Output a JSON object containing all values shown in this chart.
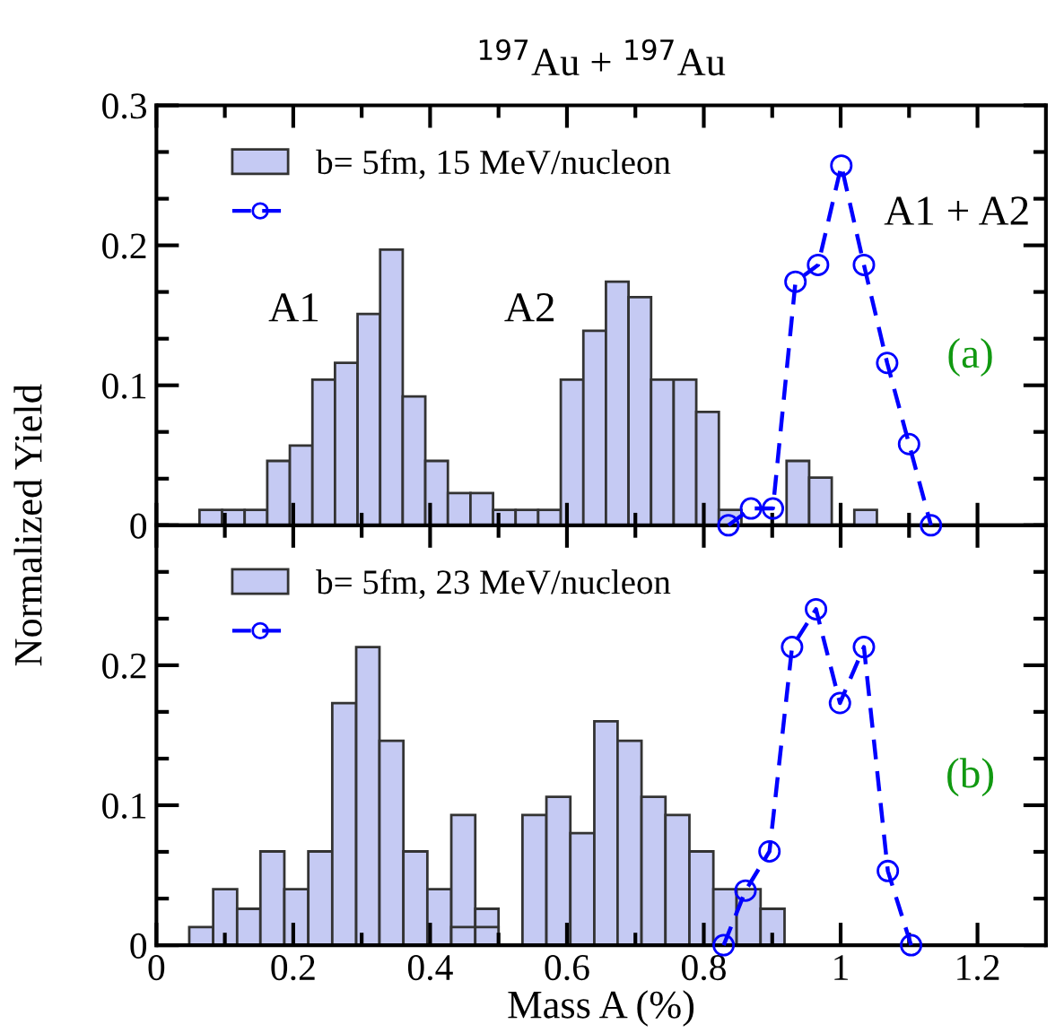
{
  "chart_data": [
    {
      "type": "histogram",
      "title": "$^{197}$Au + $^{197}$Au",
      "ylabel": "Normalized Yield",
      "bins": [
        0.063,
        0.096,
        0.129,
        0.162,
        0.195,
        0.228,
        0.261,
        0.294,
        0.327,
        0.36,
        0.393,
        0.426,
        0.459,
        0.492,
        0.525,
        0.558,
        0.591,
        0.624,
        0.657,
        0.69,
        0.723,
        0.756,
        0.789,
        0.822,
        0.855,
        0.888,
        0.921,
        0.954,
        0.987,
        1.02,
        1.053
      ],
      "series": [
        {
          "name": "b= 5fm, 15 MeV/nucleon",
          "color": "#c5caf3",
          "values": [
            0.011,
            0.011,
            0.011,
            0.046,
            0.057,
            0.104,
            0.116,
            0.151,
            0.197,
            0.092,
            0.046,
            0.023,
            0.023,
            0.011,
            0.011,
            0.011,
            0.104,
            0.139,
            0.174,
            0.163,
            0.104,
            0.104,
            0.081,
            0.011,
            null,
            null,
            0.046,
            0.034,
            null,
            0.011
          ]
        },
        {
          "type": "line",
          "color": "#0000ff",
          "marker": "circle",
          "line_style": "dashed",
          "x": [
            0.836,
            0.869,
            0.901,
            0.934,
            0.967,
            1.001,
            1.034,
            1.068,
            1.1,
            1.132
          ],
          "values": [
            0,
            0.012,
            0.012,
            0.174,
            0.186,
            0.257,
            0.186,
            0.116,
            0.058,
            0
          ]
        }
      ],
      "annotations": [
        "A1",
        "A2",
        "A1 + A2",
        "(a)"
      ],
      "xlim": [
        0,
        1.3
      ],
      "xticks": [
        0,
        {
          "value": 0.1,
          "label": null
        },
        0.2,
        {
          "value": 0.3,
          "label": null
        },
        0.4,
        {
          "value": 0.5,
          "label": null
        },
        0.6,
        {
          "value": 0.7,
          "label": null
        },
        0.8,
        {
          "value": 0.9,
          "label": null
        },
        1,
        {
          "value": 1.1,
          "label": null
        },
        1.2
      ],
      "ylim": [
        0,
        0.3
      ],
      "yticks": [
        0,
        {
          "value": 0.0333,
          "label": null
        },
        {
          "value": 0.0667,
          "label": null
        },
        0.1,
        {
          "value": 0.1333,
          "label": null
        },
        {
          "value": 0.1667,
          "label": null
        },
        0.2,
        {
          "value": 0.2333,
          "label": null
        },
        {
          "value": 0.2667,
          "label": null
        },
        0.3
      ],
      "tick_labels": "y",
      "legend": "top left",
      "grid": false
    },
    {
      "type": "histogram",
      "xlabel": "Mass A (%)",
      "bins": [
        0.048,
        0.083,
        0.118,
        0.152,
        0.187,
        0.222,
        0.257,
        0.292,
        0.326,
        0.361,
        0.396,
        0.431,
        0.466,
        0.5,
        0.535,
        0.57,
        0.605,
        0.64,
        0.674,
        0.709,
        0.744,
        0.779,
        0.814,
        0.848,
        0.883,
        0.918
      ],
      "series": [
        {
          "name": "b= 5fm, 23 MeV/nucleon",
          "color": "#c5caf3",
          "values": [
            0.013,
            0.04,
            0.026,
            0.067,
            0.04,
            0.067,
            0.173,
            0.213,
            0.146,
            0.067,
            0.04,
            0.093,
            0.026,
            null,
            null,
            null,
            null,
            null,
            null,
            null,
            null,
            null,
            null,
            null,
            null
          ]
        },
        {
          "color": "#c5caf3",
          "values": [
            null,
            null,
            null,
            null,
            null,
            null,
            null,
            null,
            null,
            null,
            null,
            0.013,
            0.013,
            null,
            0.093,
            0.106,
            0.08,
            0.16,
            0.146,
            0.106,
            0.093,
            0.067,
            0.04,
            0.04,
            0.026
          ]
        },
        {
          "type": "line",
          "color": "#0000ff",
          "marker": "circle",
          "line_style": "dashed",
          "x": [
            0.829,
            0.861,
            0.896,
            0.929,
            0.964,
            0.999,
            1.034,
            1.069,
            1.103
          ],
          "values": [
            0,
            0.039,
            0.067,
            0.213,
            0.24,
            0.173,
            0.213,
            0.053,
            0
          ]
        }
      ],
      "annotations": [
        "(b)"
      ],
      "xlim": [
        0,
        1.3
      ],
      "xticks": [
        0,
        {
          "value": 0.1,
          "label": null
        },
        0.2,
        {
          "value": 0.3,
          "label": null
        },
        0.4,
        {
          "value": 0.5,
          "label": null
        },
        0.6,
        {
          "value": 0.7,
          "label": null
        },
        0.8,
        {
          "value": 0.9,
          "label": null
        },
        1,
        {
          "value": 1.1,
          "label": null
        },
        1.2
      ],
      "ylim": [
        0,
        0.3
      ],
      "yticks": [
        0,
        {
          "value": 0.0333,
          "label": null
        },
        {
          "value": 0.0667,
          "label": null
        },
        0.1,
        {
          "value": 0.1333,
          "label": null
        },
        {
          "value": 0.1667,
          "label": null
        },
        0.2,
        {
          "value": 0.2333,
          "label": null
        },
        {
          "value": 0.2667,
          "label": null
        },
        {
          "value": 0.3,
          "label": null
        }
      ],
      "legend": "top left",
      "grid": false
    }
  ]
}
